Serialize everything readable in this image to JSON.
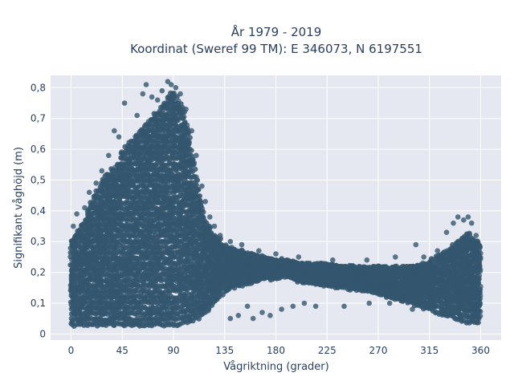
{
  "chart_data": {
    "type": "scatter",
    "title_line1": "År 1979 - 2019",
    "title_line2": "Koordinat (Sweref 99 TM): E 346073, N 6197551",
    "xlabel": "Vågriktning (grader)",
    "ylabel": "Signifikant våghöjd (m)",
    "xlim": [
      -18,
      378
    ],
    "ylim": [
      -0.02,
      0.84
    ],
    "xticks": [
      0,
      45,
      90,
      135,
      180,
      225,
      270,
      315,
      360
    ],
    "xtick_labels": [
      "0",
      "45",
      "90",
      "135",
      "180",
      "225",
      "270",
      "315",
      "360"
    ],
    "yticks": [
      0,
      0.1,
      0.2,
      0.3,
      0.4,
      0.5,
      0.6,
      0.7,
      0.8
    ],
    "ytick_labels": [
      "0",
      "0,1",
      "0,2",
      "0,3",
      "0,4",
      "0,5",
      "0,6",
      "0,7",
      "0,8"
    ],
    "grid": true,
    "marker_color": "#34566e",
    "plot_bg": "#e5e8f0",
    "envelope": {
      "direction": [
        0,
        10,
        20,
        30,
        40,
        45,
        50,
        60,
        70,
        80,
        85,
        90,
        95,
        100,
        105,
        110,
        115,
        120,
        125,
        130,
        135,
        140,
        150,
        160,
        170,
        180,
        190,
        200,
        220,
        240,
        260,
        280,
        300,
        315,
        330,
        340,
        345,
        350,
        355,
        360
      ],
      "max_height": [
        0.3,
        0.36,
        0.45,
        0.52,
        0.55,
        0.6,
        0.62,
        0.66,
        0.7,
        0.74,
        0.78,
        0.8,
        0.76,
        0.72,
        0.62,
        0.52,
        0.42,
        0.36,
        0.33,
        0.31,
        0.29,
        0.28,
        0.27,
        0.26,
        0.25,
        0.24,
        0.24,
        0.23,
        0.23,
        0.22,
        0.22,
        0.22,
        0.22,
        0.24,
        0.27,
        0.3,
        0.32,
        0.33,
        0.31,
        0.3
      ],
      "min_height": [
        0.03,
        0.03,
        0.03,
        0.03,
        0.03,
        0.03,
        0.03,
        0.03,
        0.03,
        0.03,
        0.03,
        0.03,
        0.03,
        0.04,
        0.04,
        0.05,
        0.06,
        0.08,
        0.1,
        0.12,
        0.14,
        0.15,
        0.16,
        0.17,
        0.18,
        0.18,
        0.19,
        0.17,
        0.16,
        0.15,
        0.14,
        0.12,
        0.1,
        0.08,
        0.06,
        0.05,
        0.04,
        0.04,
        0.04,
        0.04
      ]
    },
    "outliers": [
      {
        "x": 2,
        "y": 0.35
      },
      {
        "x": 5,
        "y": 0.39
      },
      {
        "x": 12,
        "y": 0.41
      },
      {
        "x": 16,
        "y": 0.46
      },
      {
        "x": 22,
        "y": 0.49
      },
      {
        "x": 27,
        "y": 0.53
      },
      {
        "x": 33,
        "y": 0.58
      },
      {
        "x": 38,
        "y": 0.66
      },
      {
        "x": 42,
        "y": 0.64
      },
      {
        "x": 47,
        "y": 0.75
      },
      {
        "x": 52,
        "y": 0.6
      },
      {
        "x": 58,
        "y": 0.71
      },
      {
        "x": 63,
        "y": 0.78
      },
      {
        "x": 66,
        "y": 0.81
      },
      {
        "x": 71,
        "y": 0.77
      },
      {
        "x": 76,
        "y": 0.76
      },
      {
        "x": 80,
        "y": 0.79
      },
      {
        "x": 85,
        "y": 0.82
      },
      {
        "x": 88,
        "y": 0.81
      },
      {
        "x": 92,
        "y": 0.8
      },
      {
        "x": 96,
        "y": 0.78
      },
      {
        "x": 101,
        "y": 0.73
      },
      {
        "x": 106,
        "y": 0.66
      },
      {
        "x": 110,
        "y": 0.58
      },
      {
        "x": 115,
        "y": 0.48
      },
      {
        "x": 118,
        "y": 0.43
      },
      {
        "x": 122,
        "y": 0.38
      },
      {
        "x": 126,
        "y": 0.35
      },
      {
        "x": 131,
        "y": 0.32
      },
      {
        "x": 140,
        "y": 0.3
      },
      {
        "x": 150,
        "y": 0.29
      },
      {
        "x": 165,
        "y": 0.27
      },
      {
        "x": 180,
        "y": 0.26
      },
      {
        "x": 200,
        "y": 0.25
      },
      {
        "x": 230,
        "y": 0.24
      },
      {
        "x": 260,
        "y": 0.24
      },
      {
        "x": 285,
        "y": 0.25
      },
      {
        "x": 303,
        "y": 0.29
      },
      {
        "x": 310,
        "y": 0.25
      },
      {
        "x": 322,
        "y": 0.27
      },
      {
        "x": 330,
        "y": 0.33
      },
      {
        "x": 336,
        "y": 0.36
      },
      {
        "x": 340,
        "y": 0.38
      },
      {
        "x": 345,
        "y": 0.37
      },
      {
        "x": 349,
        "y": 0.38
      },
      {
        "x": 352,
        "y": 0.36
      },
      {
        "x": 356,
        "y": 0.32
      },
      {
        "x": 155,
        "y": 0.09
      },
      {
        "x": 168,
        "y": 0.07
      },
      {
        "x": 175,
        "y": 0.06
      },
      {
        "x": 185,
        "y": 0.08
      },
      {
        "x": 195,
        "y": 0.09
      },
      {
        "x": 205,
        "y": 0.1
      },
      {
        "x": 215,
        "y": 0.09
      },
      {
        "x": 240,
        "y": 0.09
      },
      {
        "x": 262,
        "y": 0.1
      },
      {
        "x": 280,
        "y": 0.1
      },
      {
        "x": 300,
        "y": 0.08
      },
      {
        "x": 325,
        "y": 0.07
      },
      {
        "x": 140,
        "y": 0.05
      },
      {
        "x": 147,
        "y": 0.06
      },
      {
        "x": 160,
        "y": 0.05
      }
    ]
  }
}
